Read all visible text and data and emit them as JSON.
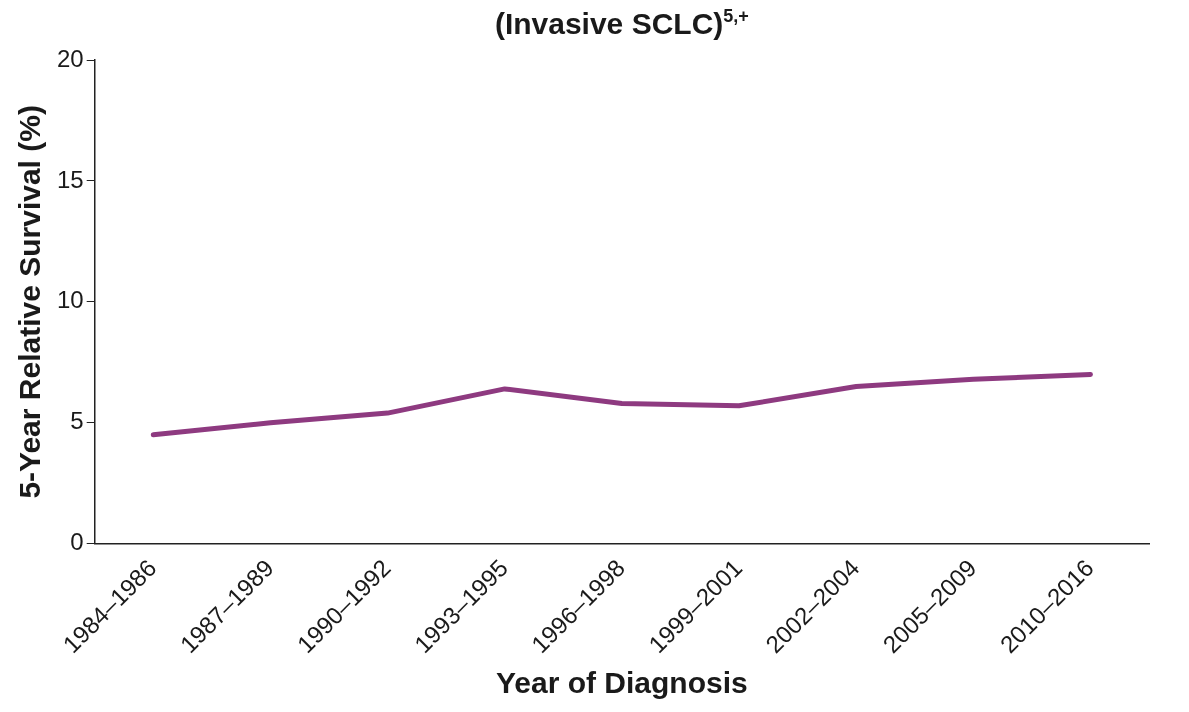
{
  "chart_data": {
    "type": "line",
    "title": "(Invasive SCLC)$^{5,+}$",
    "xlabel": "Year of Diagnosis",
    "ylabel": "5-Year Relative Survival (%)",
    "categories": [
      "1984–1986",
      "1987–1989",
      "1990–1992",
      "1993–1995",
      "1996–1998",
      "1999–2001",
      "2002–2004",
      "2005–2009",
      "2010–2016"
    ],
    "series": [
      {
        "color": "#8e3a80",
        "values": [
          4.5,
          5.0,
          5.4,
          6.4,
          5.8,
          5.7,
          6.5,
          6.8,
          7.0
        ]
      }
    ],
    "ylim": [
      0,
      20
    ],
    "yticks": [
      0,
      5,
      10,
      15,
      20
    ],
    "grid": false,
    "legend": false,
    "marker": "none",
    "line_style": "solid"
  }
}
